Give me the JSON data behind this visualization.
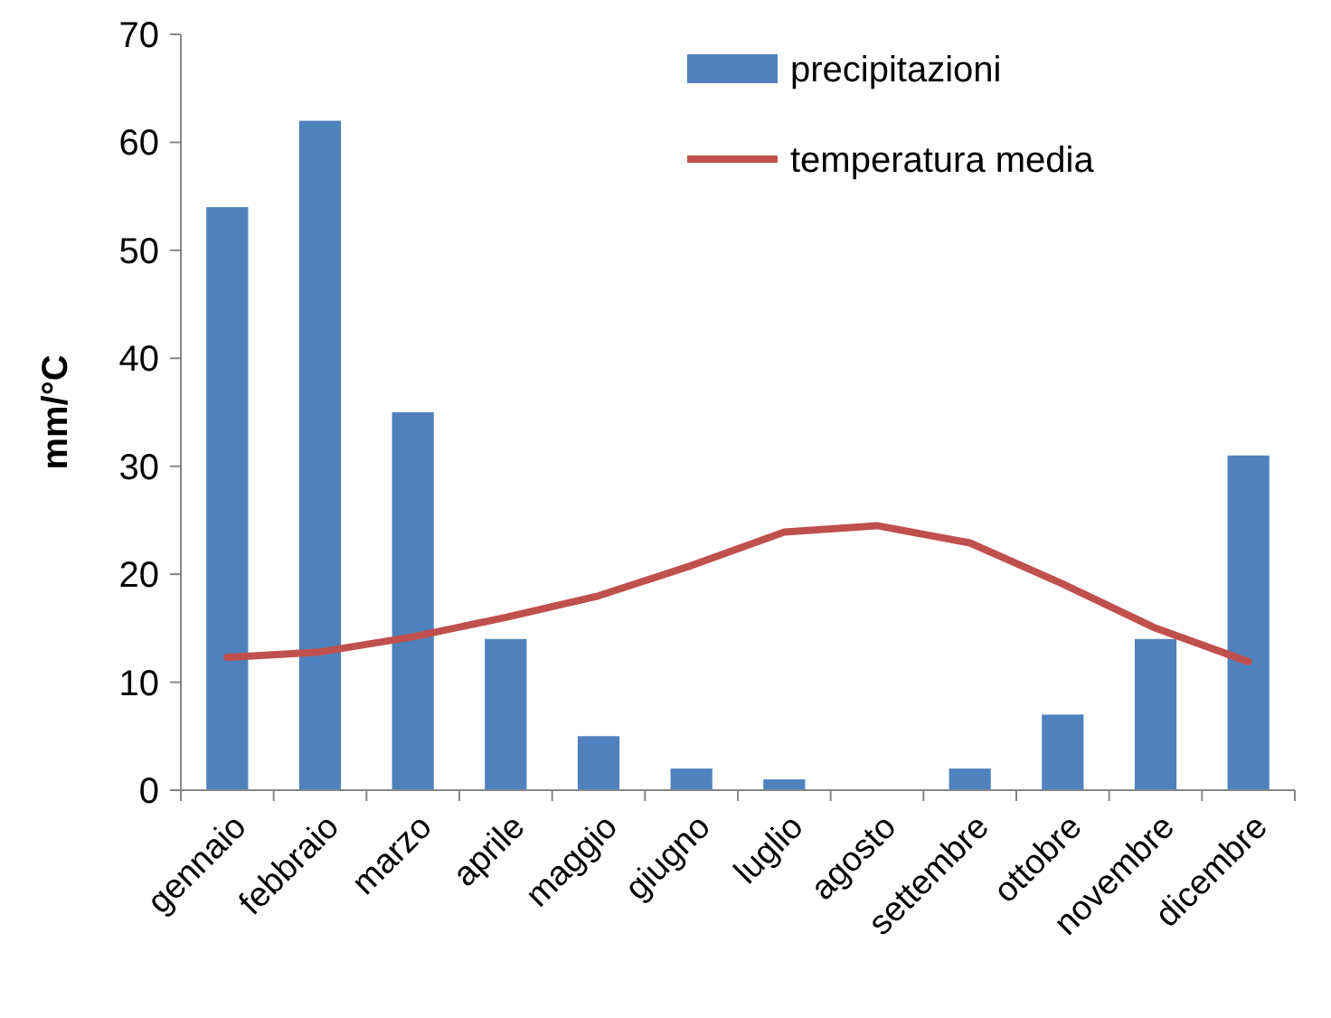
{
  "chart_data": {
    "type": "bar",
    "ylabel": "mm/°C",
    "categories": [
      "gennaio",
      "febbraio",
      "marzo",
      "aprile",
      "maggio",
      "giugno",
      "luglio",
      "agosto",
      "settembre",
      "ottobre",
      "novembre",
      "dicembre"
    ],
    "series": [
      {
        "name": "precipitazioni",
        "color": "#4f81bd",
        "values": [
          54,
          62,
          35,
          14,
          5,
          2,
          1,
          0,
          2,
          7,
          14,
          31
        ]
      },
      {
        "name": "temperatura media",
        "type": "line",
        "color": "#c0504d",
        "values": [
          12.3,
          12.8,
          14.2,
          16,
          18,
          20.8,
          23.9,
          24.5,
          22.9,
          19.1,
          15,
          11.9
        ]
      }
    ],
    "ylim": [
      0,
      70
    ],
    "yticks": [
      0,
      10,
      20,
      30,
      40,
      50,
      60,
      70
    ],
    "grid": false,
    "legend": "top right",
    "marker": "none",
    "line_style": "solid"
  }
}
